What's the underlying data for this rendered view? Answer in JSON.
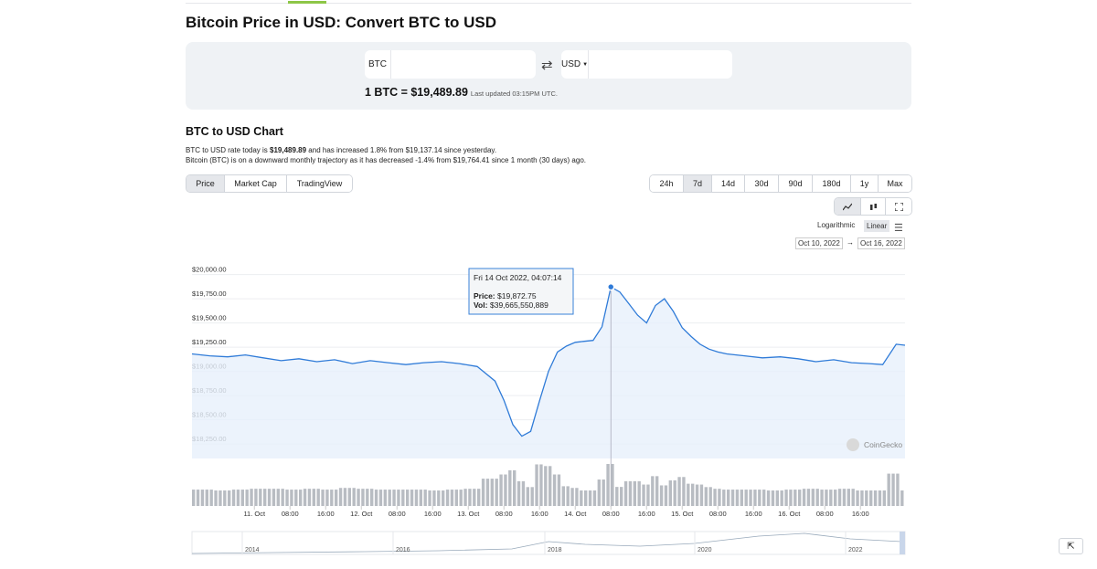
{
  "page_title": "Bitcoin Price in USD: Convert BTC to USD",
  "converter": {
    "from_currency": "BTC",
    "to_currency": "USD",
    "from_value": "",
    "to_value": "",
    "rate_text": "1 BTC = $19,489.89",
    "last_updated": "Last updated 03:15PM UTC."
  },
  "chart_section": {
    "heading": "BTC to USD Chart",
    "desc_1a": "BTC to USD rate today is ",
    "desc_1b": "$19,489.89",
    "desc_1c": " and has increased 1.8% from $19,137.14 since yesterday.",
    "desc_2": "Bitcoin (BTC) is on a downward monthly trajectory as it has decreased -1.4% from $19,764.41 since 1 month (30 days) ago."
  },
  "view_tabs": [
    "Price",
    "Market Cap",
    "TradingView"
  ],
  "range_tabs": [
    "24h",
    "7d",
    "14d",
    "30d",
    "90d",
    "180d",
    "1y",
    "Max"
  ],
  "active_range": "7d",
  "chart_type_icons": [
    "line-chart-icon",
    "candlestick-icon",
    "fullscreen-icon"
  ],
  "scale_options": {
    "log": "Logarithmic",
    "linear": "Linear"
  },
  "date_from": "Oct 10, 2022",
  "date_to": "Oct 16, 2022",
  "tooltip": {
    "date": "Fri 14 Oct 2022, 04:07:14",
    "price_label": "Price:",
    "price": "$19,872.75",
    "vol_label": "Vol:",
    "vol": "$39,665,550,889"
  },
  "watermark": "CoinGecko",
  "colors": {
    "accent": "#8dc647",
    "line": "#2f7bd8",
    "area": "#e7f0fb",
    "volume": "#b8bcc2"
  },
  "chart_data": {
    "type": "area",
    "ylim": [
      18100,
      20100
    ],
    "y_ticks": [
      "$20,000.00",
      "$19,750.00",
      "$19,500.00",
      "$19,250.00",
      "$19,000.00",
      "$18,750.00",
      "$18,500.00",
      "$18,250.00"
    ],
    "y_tick_values": [
      20000,
      19750,
      19500,
      19250,
      19000,
      18750,
      18500,
      18250
    ],
    "x_ticks": [
      "11. Oct",
      "08:00",
      "16:00",
      "12. Oct",
      "08:00",
      "16:00",
      "13. Oct",
      "08:00",
      "16:00",
      "14. Oct",
      "08:00",
      "16:00",
      "15. Oct",
      "08:00",
      "16:00",
      "16. Oct",
      "08:00",
      "16:00"
    ],
    "x_hours": [
      14,
      22,
      30,
      38,
      46,
      54,
      62,
      70,
      78,
      86,
      94,
      102,
      110,
      118,
      126,
      134,
      142,
      150
    ],
    "x_range_hours": [
      0,
      160
    ],
    "series": [
      {
        "hours": [
          0,
          4,
          8,
          12,
          16,
          20,
          24,
          28,
          32,
          36,
          40,
          44,
          48,
          52,
          56,
          60,
          64,
          68,
          70,
          72,
          74,
          76,
          78,
          80,
          82,
          84,
          86,
          88,
          90,
          92,
          94,
          96,
          98,
          100,
          102,
          104,
          106,
          108,
          110,
          112,
          114,
          116,
          118,
          120,
          124,
          128,
          132,
          136,
          140,
          144,
          148,
          152,
          155,
          158,
          160
        ],
        "values": [
          19180,
          19160,
          19150,
          19170,
          19140,
          19110,
          19130,
          19100,
          19120,
          19080,
          19110,
          19090,
          19070,
          19090,
          19100,
          19080,
          19050,
          18900,
          18700,
          18450,
          18330,
          18380,
          18700,
          19000,
          19200,
          19260,
          19300,
          19310,
          19320,
          19460,
          19872,
          19820,
          19700,
          19580,
          19500,
          19680,
          19750,
          19620,
          19450,
          19360,
          19280,
          19230,
          19200,
          19180,
          19160,
          19140,
          19150,
          19130,
          19100,
          19120,
          19090,
          19080,
          19070,
          19280,
          19270
        ]
      }
    ],
    "volume_note": "Volume bars shown beneath main series",
    "navigator_years": [
      "2014",
      "2016",
      "2018",
      "2020",
      "2022"
    ]
  }
}
